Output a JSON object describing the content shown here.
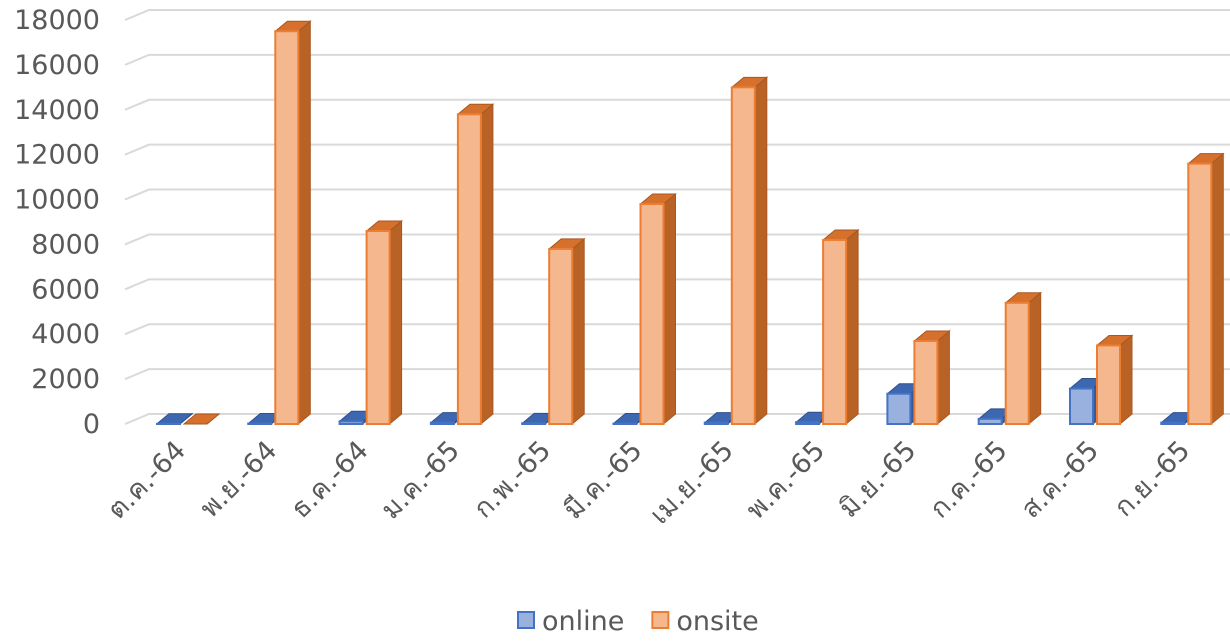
{
  "chart_data": {
    "type": "bar",
    "categories": [
      "ต.ค.-64",
      "พ.ย.-64",
      "ธ.ค.-64",
      "ม.ค.-65",
      "ก.พ.-65",
      "มี.ค.-65",
      "เม.ย.-65",
      "พ.ค.-65",
      "มิ.ย.-65",
      "ก.ค.-65",
      "ส.ค.-65",
      "ก.ย.-65"
    ],
    "series": [
      {
        "name": "online",
        "values": [
          10,
          20,
          120,
          60,
          30,
          20,
          60,
          80,
          1350,
          230,
          1580,
          60
        ],
        "color": "#4472C4"
      },
      {
        "name": "onsite",
        "values": [
          0,
          17500,
          8600,
          13800,
          7800,
          9800,
          15000,
          8200,
          3700,
          5400,
          3500,
          11600
        ],
        "color": "#ED7D31"
      }
    ],
    "yticks": [
      "0",
      "2000",
      "4000",
      "6000",
      "8000",
      "10000",
      "12000",
      "14000",
      "16000",
      "18000"
    ],
    "ylim": [
      0,
      18000
    ],
    "grid": true,
    "legend_position": "bottom",
    "style": "3d-clustered-column"
  }
}
